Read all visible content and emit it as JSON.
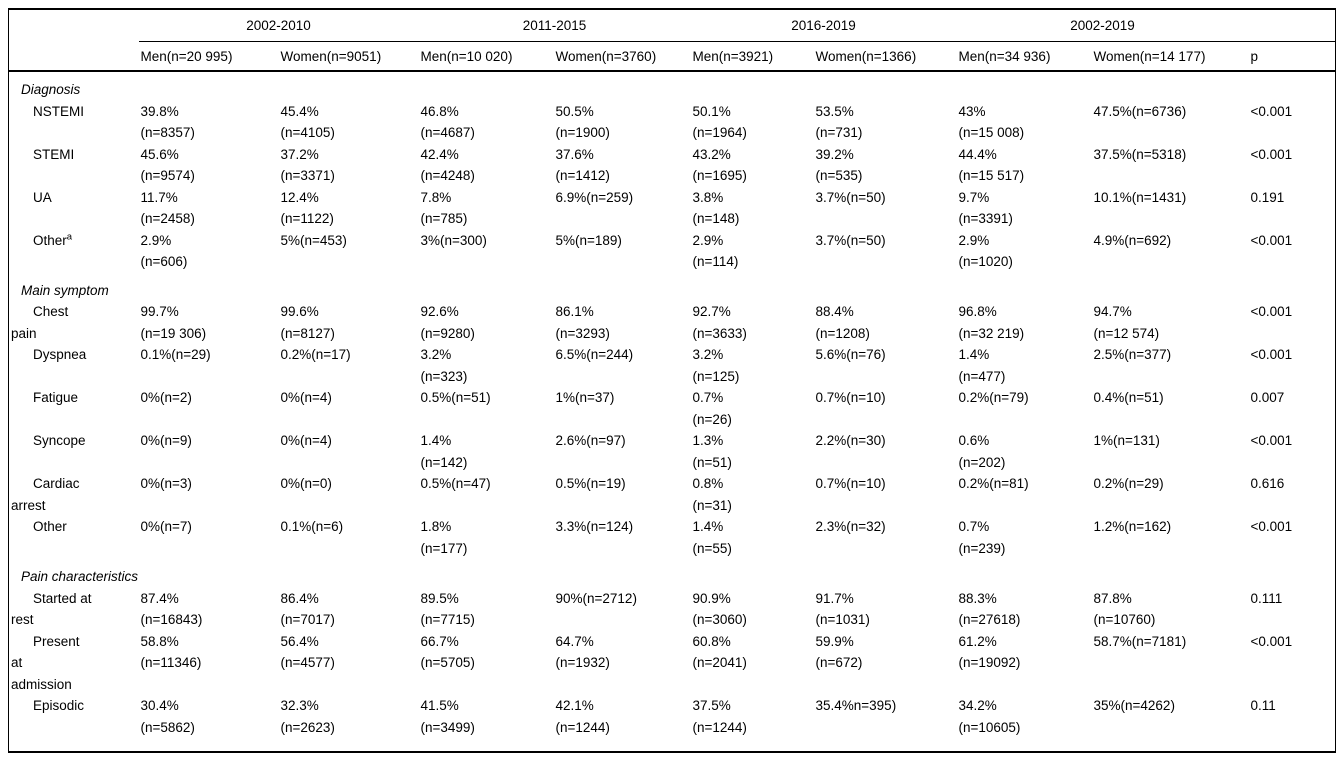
{
  "table": {
    "header": {
      "groups": [
        {
          "label": "2002-2010"
        },
        {
          "label": "2011-2015"
        },
        {
          "label": "2016-2019"
        },
        {
          "label": "2002-2019"
        }
      ],
      "columns": [
        "Men(n=20 995)",
        "Women(n=9051)",
        "Men(n=10 020)",
        "Women(n=3760)",
        "Men(n=3921)",
        "Women(n=1366)",
        "Men(n=34 936)",
        "Women(n=14 177)",
        "p"
      ]
    },
    "rows": [
      {
        "type": "section",
        "label": "Diagnosis"
      },
      {
        "type": "data",
        "label": "NSTEMI",
        "cells": [
          "39.8%\n(n=8357)",
          "45.4%\n(n=4105)",
          "46.8%\n(n=4687)",
          "50.5%\n(n=1900)",
          "50.1%\n(n=1964)",
          "53.5%\n(n=731)",
          "43%\n(n=15 008)",
          "47.5%(n=6736)",
          "<0.001"
        ]
      },
      {
        "type": "data",
        "label": "STEMI",
        "cells": [
          "45.6%\n(n=9574)",
          "37.2%\n(n=3371)",
          "42.4%\n(n=4248)",
          "37.6%\n(n=1412)",
          "43.2%\n(n=1695)",
          "39.2%\n(n=535)",
          "44.4%\n(n=15 517)",
          "37.5%(n=5318)",
          "<0.001"
        ]
      },
      {
        "type": "data",
        "label": "UA",
        "cells": [
          "11.7%\n(n=2458)",
          "12.4%\n(n=1122)",
          "7.8%\n(n=785)",
          "6.9%(n=259)",
          "3.8%\n(n=148)",
          "3.7%(n=50)",
          "9.7%\n(n=3391)",
          "10.1%(n=1431)",
          "0.191"
        ]
      },
      {
        "type": "data",
        "label": "Other",
        "sup": "a",
        "cells": [
          "2.9%\n(n=606)",
          "5%(n=453)",
          "3%(n=300)",
          "5%(n=189)",
          "2.9%\n(n=114)",
          "3.7%(n=50)",
          "2.9%\n(n=1020)",
          "4.9%(n=692)",
          "<0.001"
        ]
      },
      {
        "type": "section",
        "label": "Main symptom"
      },
      {
        "type": "data",
        "label": "Chest\npain",
        "cells": [
          "99.7%\n(n=19 306)",
          "99.6%\n(n=8127)",
          "92.6%\n(n=9280)",
          "86.1%\n(n=3293)",
          "92.7%\n(n=3633)",
          "88.4%\n(n=1208)",
          "96.8%\n(n=32 219)",
          "94.7%\n(n=12 574)",
          "<0.001"
        ]
      },
      {
        "type": "data",
        "label": "Dyspnea",
        "cells": [
          "0.1%(n=29)",
          "0.2%(n=17)",
          "3.2%\n(n=323)",
          "6.5%(n=244)",
          "3.2%\n(n=125)",
          "5.6%(n=76)",
          "1.4%\n(n=477)",
          "2.5%(n=377)",
          "<0.001"
        ]
      },
      {
        "type": "data",
        "label": "Fatigue",
        "cells": [
          "0%(n=2)",
          "0%(n=4)",
          "0.5%(n=51)",
          "1%(n=37)",
          "0.7%\n(n=26)",
          "0.7%(n=10)",
          "0.2%(n=79)",
          "0.4%(n=51)",
          "0.007"
        ]
      },
      {
        "type": "data",
        "label": "Syncope",
        "cells": [
          "0%(n=9)",
          "0%(n=4)",
          "1.4%\n(n=142)",
          "2.6%(n=97)",
          "1.3%\n(n=51)",
          "2.2%(n=30)",
          "0.6%\n(n=202)",
          "1%(n=131)",
          "<0.001"
        ]
      },
      {
        "type": "data",
        "label": "Cardiac\narrest",
        "cells": [
          "0%(n=3)",
          "0%(n=0)",
          "0.5%(n=47)",
          "0.5%(n=19)",
          "0.8%\n(n=31)",
          "0.7%(n=10)",
          "0.2%(n=81)",
          "0.2%(n=29)",
          "0.616"
        ]
      },
      {
        "type": "data",
        "label": "Other",
        "cells": [
          "0%(n=7)",
          "0.1%(n=6)",
          "1.8%\n(n=177)",
          "3.3%(n=124)",
          "1.4%\n(n=55)",
          "2.3%(n=32)",
          "0.7%\n(n=239)",
          "1.2%(n=162)",
          "<0.001"
        ]
      },
      {
        "type": "section",
        "label": "Pain characteristics"
      },
      {
        "type": "data",
        "label": "Started at\nrest",
        "cells": [
          "87.4%\n(n=16843)",
          "86.4%\n(n=7017)",
          "89.5%\n(n=7715)",
          "90%(n=2712)",
          "90.9%\n(n=3060)",
          "91.7%\n(n=1031)",
          "88.3%\n(n=27618)",
          "87.8%\n(n=10760)",
          "0.111"
        ]
      },
      {
        "type": "data",
        "label": "Present\nat\nadmission",
        "cells": [
          "58.8%\n(n=11346)",
          "56.4%\n(n=4577)",
          "66.7%\n(n=5705)",
          "64.7%\n(n=1932)",
          "60.8%\n(n=2041)",
          "59.9%\n(n=672)",
          "61.2%\n(n=19092)",
          "58.7%(n=7181)",
          "<0.001"
        ]
      },
      {
        "type": "data",
        "label": "Episodic",
        "cells": [
          "30.4%\n(n=5862)",
          "32.3%\n(n=2623)",
          "41.5%\n(n=3499)",
          "42.1%\n(n=1244)",
          "37.5%\n(n=1244)",
          "35.4%n=395)",
          "34.2%\n(n=10605)",
          "35%(n=4262)",
          "0.11"
        ]
      }
    ]
  }
}
